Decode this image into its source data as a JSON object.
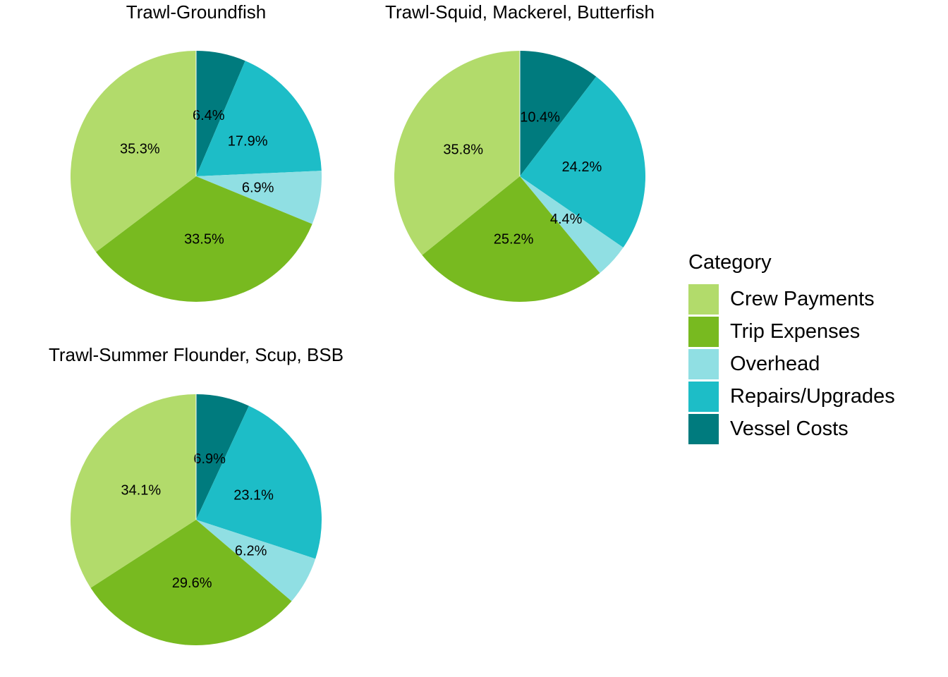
{
  "legend": {
    "title": "Category",
    "items": [
      {
        "label": "Crew Payments",
        "color": "#B2DB6B"
      },
      {
        "label": "Trip Expenses",
        "color": "#78BA20"
      },
      {
        "label": "Overhead",
        "color": "#90DFE3"
      },
      {
        "label": "Repairs/Upgrades",
        "color": "#1DBDC7"
      },
      {
        "label": "Vessel Costs",
        "color": "#007B7E"
      }
    ]
  },
  "panels": [
    {
      "title": "Trawl-Groundfish"
    },
    {
      "title": "Trawl-Squid, Mackerel, Butterfish"
    },
    {
      "title": "Trawl-Summer Flounder, Scup, BSB"
    }
  ],
  "chart_data": [
    {
      "type": "pie",
      "title": "Trawl-Groundfish",
      "categories": [
        "Vessel Costs",
        "Repairs/Upgrades",
        "Overhead",
        "Trip Expenses",
        "Crew Payments"
      ],
      "values": [
        6.4,
        17.9,
        6.9,
        33.5,
        35.3
      ],
      "labels": [
        "6.4%",
        "17.9%",
        "6.9%",
        "33.5%",
        "35.3%"
      ],
      "legend_title": "Category",
      "legend_position": "right",
      "start_angle": "top, clockwise"
    },
    {
      "type": "pie",
      "title": "Trawl-Squid, Mackerel, Butterfish",
      "categories": [
        "Vessel Costs",
        "Repairs/Upgrades",
        "Overhead",
        "Trip Expenses",
        "Crew Payments"
      ],
      "values": [
        10.4,
        24.2,
        4.4,
        25.2,
        35.8
      ],
      "labels": [
        "10.4%",
        "24.2%",
        "4.4%",
        "25.2%",
        "35.8%"
      ],
      "legend_title": "Category",
      "legend_position": "right",
      "start_angle": "top, clockwise"
    },
    {
      "type": "pie",
      "title": "Trawl-Summer Flounder, Scup, BSB",
      "categories": [
        "Vessel Costs",
        "Repairs/Upgrades",
        "Overhead",
        "Trip Expenses",
        "Crew Payments"
      ],
      "values": [
        6.9,
        23.1,
        6.2,
        29.6,
        34.1
      ],
      "labels": [
        "6.9%",
        "23.1%",
        "6.2%",
        "29.6%",
        "34.1%"
      ],
      "legend_title": "Category",
      "legend_position": "right",
      "start_angle": "top, clockwise"
    }
  ]
}
